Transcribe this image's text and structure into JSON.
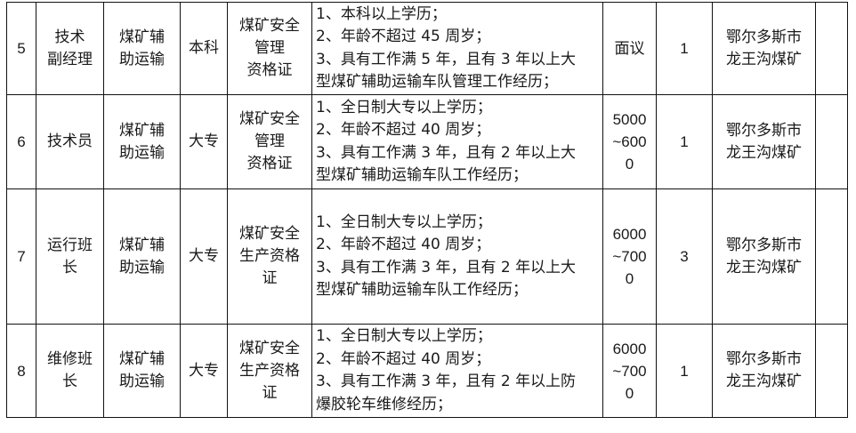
{
  "rows": [
    {
      "no": "5",
      "position": [
        "技术",
        "副经理"
      ],
      "type": [
        "煤矿辅",
        "助运输"
      ],
      "education": "本科",
      "certificate": [
        "煤矿安全",
        "管理",
        "资格证"
      ],
      "requirements": [
        "1、本科以上学历；",
        "2、年龄不超过 45 周岁；",
        "3、具有工作满 5 年，且有 3 年以上大",
        "型煤矿辅助运输车队管理工作经历；"
      ],
      "salary": [
        "面议"
      ],
      "count": "1",
      "location": [
        "鄂尔多斯市",
        "龙王沟煤矿"
      ],
      "remark": ""
    },
    {
      "no": "6",
      "position": [
        "技术员"
      ],
      "type": [
        "煤矿辅",
        "助运输"
      ],
      "education": "大专",
      "certificate": [
        "煤矿安全",
        "管理",
        "资格证"
      ],
      "requirements": [
        "1、全日制大专以上学历；",
        "2、年龄不超过 40 周岁；",
        "3、具有工作满 3 年，且有 2 年以上大",
        "型煤矿辅助运输车队工作经历；"
      ],
      "salary": [
        "5000",
        "~600",
        "0"
      ],
      "count": "1",
      "location": [
        "鄂尔多斯市",
        "龙王沟煤矿"
      ],
      "remark": ""
    },
    {
      "no": "7",
      "position": [
        "运行班",
        "长"
      ],
      "type": [
        "煤矿辅",
        "助运输"
      ],
      "education": "大专",
      "certificate": [
        "煤矿安全",
        "生产资格",
        "证"
      ],
      "requirements": [
        "1、全日制大专以上学历；",
        "2、年龄不超过 40 周岁；",
        "3、具有工作满 3 年，且有 2 年以上大",
        "型煤矿辅助运输车队工作经历；"
      ],
      "salary": [
        "6000",
        "~700",
        "0"
      ],
      "count": "3",
      "location": [
        "鄂尔多斯市",
        "龙王沟煤矿"
      ],
      "remark": ""
    },
    {
      "no": "8",
      "position": [
        "维修班",
        "长"
      ],
      "type": [
        "煤矿辅",
        "助运输"
      ],
      "education": "大专",
      "certificate": [
        "煤矿安全",
        "生产资格",
        "证"
      ],
      "requirements": [
        "1、全日制大专以上学历；",
        "2、年龄不超过 40 周岁；",
        "3、具有工作满 3 年，且有 2 年以上防",
        "爆胶轮车维修经历；"
      ],
      "salary": [
        "6000",
        "~700",
        "0"
      ],
      "count": "1",
      "location": [
        "鄂尔多斯市",
        "龙王沟煤矿"
      ],
      "remark": ""
    }
  ]
}
